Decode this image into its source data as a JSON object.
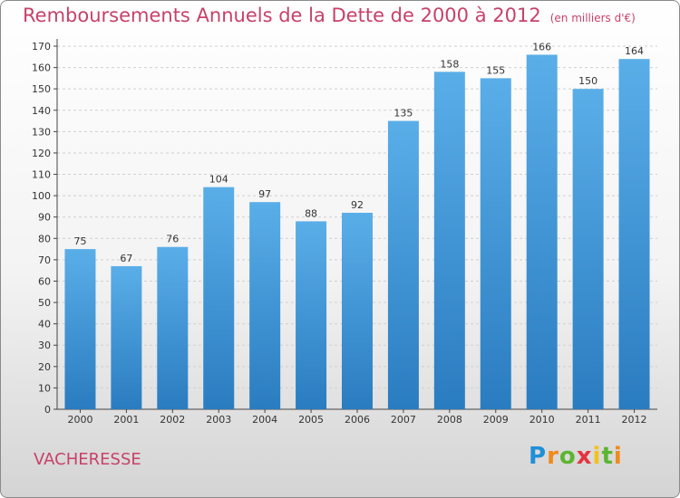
{
  "header": {
    "title": "Remboursements Annuels de la Dette de 2000 à 2012",
    "unit": "(en milliers d'€)"
  },
  "footer": {
    "city": "VACHERESSE",
    "logo": "Proxiti"
  },
  "colors": {
    "accent": "#c8416a",
    "bar_top": "#5aaee8",
    "bar_bottom": "#2a7cc0"
  },
  "chart_data": {
    "type": "bar",
    "title": "Remboursements Annuels de la Dette de 2000 à 2012",
    "subtitle": "(en milliers d'€)",
    "categories": [
      "2000",
      "2001",
      "2002",
      "2003",
      "2004",
      "2005",
      "2006",
      "2007",
      "2008",
      "2009",
      "2010",
      "2011",
      "2012"
    ],
    "values": [
      75,
      67,
      76,
      104,
      97,
      88,
      92,
      135,
      158,
      155,
      166,
      150,
      164
    ],
    "ylim": [
      0,
      170
    ],
    "yticks": [
      0,
      10,
      20,
      30,
      40,
      50,
      60,
      70,
      80,
      90,
      100,
      110,
      120,
      130,
      140,
      150,
      160,
      170
    ],
    "grid": true,
    "data_labels": true
  }
}
